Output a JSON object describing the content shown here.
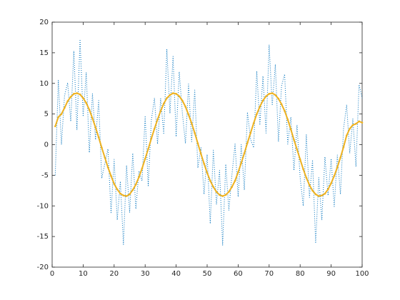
{
  "chart_data": {
    "type": "line",
    "x": [
      1,
      2,
      3,
      4,
      5,
      6,
      7,
      8,
      9,
      10,
      11,
      12,
      13,
      14,
      15,
      16,
      17,
      18,
      19,
      20,
      21,
      22,
      23,
      24,
      25,
      26,
      27,
      28,
      29,
      30,
      31,
      32,
      33,
      34,
      35,
      36,
      37,
      38,
      39,
      40,
      41,
      42,
      43,
      44,
      45,
      46,
      47,
      48,
      49,
      50,
      51,
      52,
      53,
      54,
      55,
      56,
      57,
      58,
      59,
      60,
      61,
      62,
      63,
      64,
      65,
      66,
      67,
      68,
      69,
      70,
      71,
      72,
      73,
      74,
      75,
      76,
      77,
      78,
      79,
      80,
      81,
      82,
      83,
      84,
      85,
      86,
      87,
      88,
      89,
      90,
      91,
      92,
      93,
      94,
      95,
      96,
      97,
      98,
      99,
      100
    ],
    "series": [
      {
        "color": "#0072bd",
        "linestyle": "dotted",
        "values": [
          -5.0,
          10.5,
          0.0,
          8.0,
          10.1,
          3.8,
          15.3,
          2.4,
          17.2,
          4.6,
          11.8,
          -1.3,
          8.3,
          0.8,
          7.2,
          -5.5,
          -3.1,
          -0.7,
          -11.1,
          -2.4,
          -12.3,
          -6.0,
          -16.3,
          -3.4,
          -11.1,
          -1.4,
          -10.5,
          -4.3,
          -5.9,
          4.7,
          -6.7,
          4.0,
          7.6,
          0.1,
          7.5,
          1.7,
          15.6,
          5.1,
          14.4,
          1.3,
          11.9,
          5.2,
          0.2,
          9.9,
          0.5,
          8.9,
          -3.8,
          -0.5,
          -8.1,
          -1.6,
          -12.9,
          -0.9,
          -9.7,
          -4.2,
          -16.4,
          -3.2,
          -10.7,
          -4.9,
          0.1,
          -8.5,
          0.0,
          -7.4,
          5.3,
          0.9,
          -0.5,
          12.0,
          3.2,
          11.2,
          1.9,
          16.3,
          6.4,
          13.1,
          0.5,
          9.6,
          11.5,
          0.1,
          4.5,
          -4.2,
          3.2,
          -5.4,
          -10.0,
          1.6,
          -8.6,
          -2.5,
          -16.1,
          -5.4,
          -12.3,
          -2.0,
          -8.3,
          -2.3,
          -10.1,
          -1.7,
          -8.1,
          2.6,
          6.5,
          -1.4,
          4.2,
          -3.6,
          9.8,
          7.6
        ]
      },
      {
        "color": "#edb120",
        "linestyle": "solid",
        "marker": "dot",
        "values": [
          3.0,
          4.5,
          5.0,
          6.0,
          7.1,
          7.8,
          8.3,
          8.4,
          8.2,
          7.6,
          6.8,
          5.7,
          4.3,
          2.8,
          1.2,
          -0.5,
          -2.1,
          -3.7,
          -5.1,
          -6.4,
          -7.3,
          -8.0,
          -8.3,
          -8.4,
          -8.1,
          -7.4,
          -6.5,
          -5.3,
          -3.9,
          -2.3,
          -0.7,
          1.0,
          2.6,
          4.1,
          5.5,
          6.7,
          7.6,
          8.1,
          8.4,
          8.3,
          7.9,
          7.2,
          6.2,
          4.9,
          3.5,
          1.9,
          0.2,
          -1.5,
          -3.1,
          -4.6,
          -5.9,
          -6.9,
          -7.7,
          -8.2,
          -8.4,
          -8.2,
          -7.7,
          -6.9,
          -5.9,
          -4.5,
          -3.0,
          -1.4,
          0.3,
          1.9,
          3.5,
          5.0,
          6.2,
          7.2,
          7.9,
          8.3,
          8.4,
          8.1,
          7.5,
          6.6,
          5.5,
          4.1,
          2.5,
          0.8,
          -0.8,
          -2.4,
          -4.0,
          -5.4,
          -6.6,
          -7.5,
          -8.1,
          -8.4,
          -8.3,
          -8.0,
          -7.3,
          -6.3,
          -5.1,
          -3.7,
          -2.1,
          -0.4,
          1.5,
          2.6,
          3.2,
          3.4,
          3.8,
          3.6
        ]
      }
    ],
    "xlim": [
      0,
      100
    ],
    "xticks": [
      0,
      10,
      20,
      30,
      40,
      50,
      60,
      70,
      80,
      90,
      100
    ],
    "ylim": [
      -20,
      20
    ],
    "yticks": [
      -20,
      -15,
      -10,
      -5,
      0,
      5,
      10,
      15,
      20
    ],
    "grid": false
  }
}
